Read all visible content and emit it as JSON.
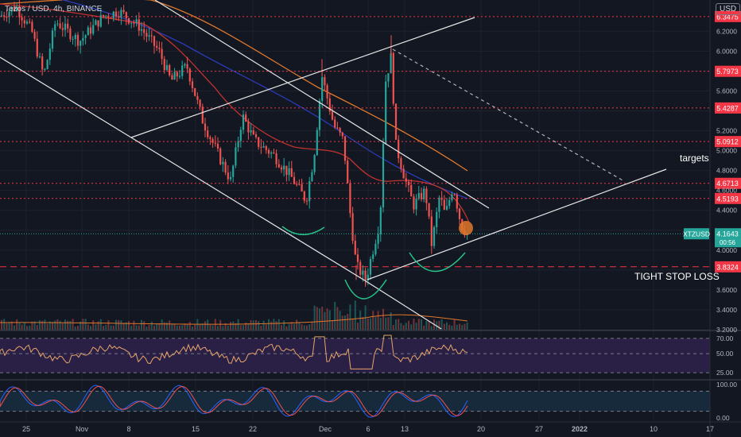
{
  "header": {
    "title": "Tezos / USD, 4h, BINANCE",
    "currency_badge": "USD"
  },
  "colors": {
    "background": "#131722",
    "level_line": "#f23645",
    "ma_orange": "#e0782b",
    "ma_red": "#c3322f",
    "ma_blue": "#2a3bb8",
    "trendline": "#e6e6e6",
    "bottom_curve": "#26c48a",
    "rsi_fill": "#2a1f44",
    "stoch_fill": "#172a3b"
  },
  "chart_data": {
    "type": "candlestick",
    "symbol": "XTZUSD",
    "interval": "4h",
    "exchange": "BINANCE",
    "ylim": [
      3.2,
      6.45
    ],
    "y_ticks": [
      3.2,
      3.4,
      3.6,
      3.8,
      4.0,
      4.2,
      4.4,
      4.6,
      4.8,
      5.0,
      5.2,
      5.4,
      5.6,
      5.8,
      6.0,
      6.2
    ],
    "y_tick_labels": [
      "3.2000",
      "3.4000",
      "3.6000",
      "",
      "4.0000",
      "",
      "4.4000",
      "4.6000",
      "4.8000",
      "5.0000",
      "5.2000",
      "",
      "5.6000",
      "",
      "6.0000",
      "6.2000"
    ],
    "x_tick_labels": [
      "25",
      "Nov",
      "8",
      "15",
      "22",
      "Dec",
      "6",
      "13",
      "20",
      "27",
      "2022",
      "10",
      "17"
    ],
    "horizontal_levels": [
      {
        "value": 6.3475,
        "label": "6.3475"
      },
      {
        "value": 5.7973,
        "label": "5.7973"
      },
      {
        "value": 5.4287,
        "label": "5.4287"
      },
      {
        "value": 5.0912,
        "label": "5.0912"
      },
      {
        "value": 4.6713,
        "label": "4.6713"
      },
      {
        "value": 4.5193,
        "label": "4.5193"
      },
      {
        "value": 3.8324,
        "label": "3.8324"
      }
    ],
    "current_price": {
      "symbol": "XTZUSD",
      "value": 4.1643,
      "label": "4.1643",
      "countdown": "00:56"
    },
    "annotations": [
      "targets",
      "TIGHT STOP LOSS"
    ],
    "rsi": {
      "levels": [
        70,
        50,
        25
      ],
      "tick_labels": [
        "70.00",
        "50.00",
        "25.00"
      ]
    },
    "stoch": {
      "levels": [
        100,
        0
      ],
      "tick_labels": [
        "100.00",
        "0.00"
      ]
    }
  }
}
